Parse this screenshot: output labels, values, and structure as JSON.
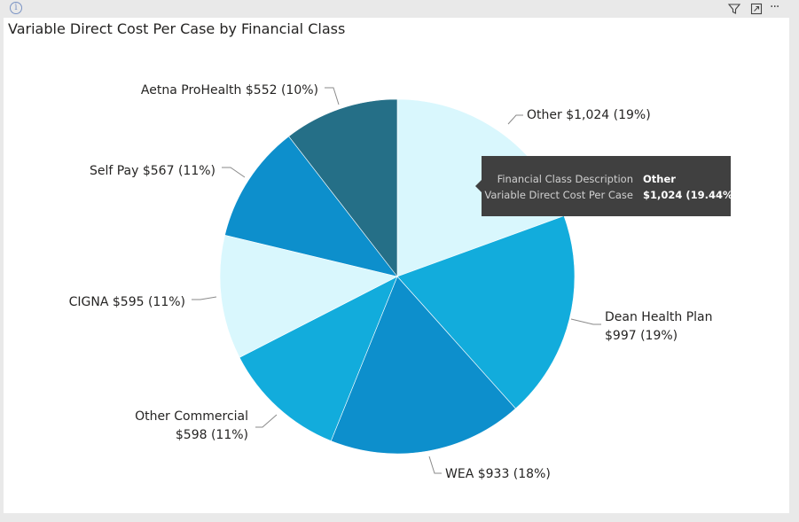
{
  "header": {
    "info_icon": "info-icon",
    "filter_icon": "filter-icon",
    "focus_icon": "focus-mode-icon",
    "more_icon": "more-options-icon",
    "more_glyph": "···"
  },
  "chart_data": {
    "type": "pie",
    "title": "Variable Direct Cost Per Case by Financial Class",
    "start_angle_deg": 0,
    "direction": "clockwise",
    "slices": [
      {
        "name": "Other",
        "value": 1024,
        "percent": 19,
        "color": "#d9f7fd",
        "label_lines": [
          "Other $1,024 (19%)"
        ]
      },
      {
        "name": "Dean Health Plan",
        "value": 997,
        "percent": 19,
        "color": "#12acdc",
        "label_lines": [
          "Dean Health Plan",
          "$997 (19%)"
        ]
      },
      {
        "name": "WEA",
        "value": 933,
        "percent": 18,
        "color": "#0d8fcc",
        "label_lines": [
          "WEA $933 (18%)"
        ]
      },
      {
        "name": "Other Commercial",
        "value": 598,
        "percent": 11,
        "color": "#12acdc",
        "label_lines": [
          "Other Commercial",
          "$598 (11%)"
        ]
      },
      {
        "name": "CIGNA",
        "value": 595,
        "percent": 11,
        "color": "#d9f7fd",
        "label_lines": [
          "CIGNA $595 (11%)"
        ]
      },
      {
        "name": "Self Pay",
        "value": 567,
        "percent": 11,
        "color": "#0d8fcc",
        "label_lines": [
          "Self Pay $567 (11%)"
        ]
      },
      {
        "name": "Aetna ProHealth",
        "value": 552,
        "percent": 10,
        "color": "#256f87",
        "label_lines": [
          "Aetna ProHealth $552 (10%)"
        ]
      }
    ],
    "tooltip": {
      "rows": [
        {
          "key": "Financial Class Description",
          "value": "Other"
        },
        {
          "key": "Variable Direct Cost Per Case",
          "value": "$1,024 (19.44%)"
        }
      ]
    }
  }
}
